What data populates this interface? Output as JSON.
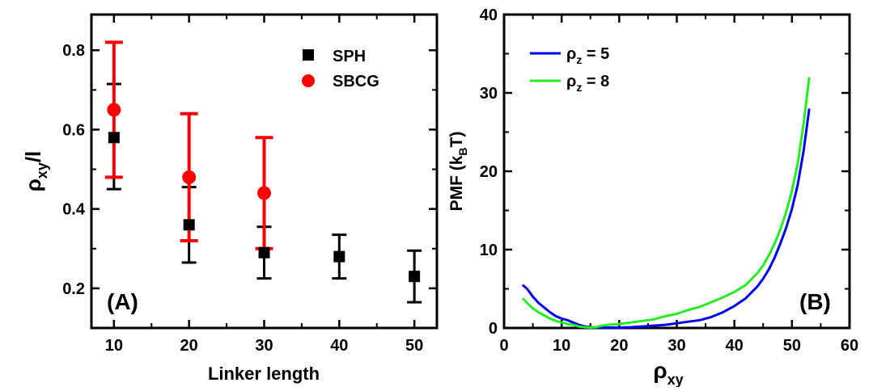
{
  "chart_data": [
    {
      "type": "scatter",
      "panel_label": "(A)",
      "xlabel": "Linker length",
      "ylabel": {
        "main": "ρ",
        "sub": "xy",
        "tail": "/l"
      },
      "xlim": [
        7,
        53
      ],
      "ylim": [
        0.1,
        0.89
      ],
      "xticks": [
        10,
        20,
        30,
        40,
        50
      ],
      "yticks": [
        0.2,
        0.4,
        0.6,
        0.8
      ],
      "xtick_labels": [
        "10",
        "20",
        "30",
        "40",
        "50"
      ],
      "ytick_labels": [
        "0.2",
        "0.4",
        "0.6",
        "0.8"
      ],
      "legend_position": "top-right",
      "series": [
        {
          "name": "SPH",
          "marker": "square",
          "color": "#000000",
          "points": [
            {
              "x": 10,
              "y": 0.58,
              "err_low": 0.45,
              "err_high": 0.715
            },
            {
              "x": 20,
              "y": 0.36,
              "err_low": 0.265,
              "err_high": 0.455
            },
            {
              "x": 30,
              "y": 0.29,
              "err_low": 0.225,
              "err_high": 0.355
            },
            {
              "x": 40,
              "y": 0.28,
              "err_low": 0.225,
              "err_high": 0.335
            },
            {
              "x": 50,
              "y": 0.23,
              "err_low": 0.165,
              "err_high": 0.295
            }
          ]
        },
        {
          "name": "SBCG",
          "marker": "circle",
          "color": "#ff0000",
          "points": [
            {
              "x": 10,
              "y": 0.65,
              "err_low": 0.48,
              "err_high": 0.82
            },
            {
              "x": 20,
              "y": 0.48,
              "err_low": 0.32,
              "err_high": 0.64
            },
            {
              "x": 30,
              "y": 0.44,
              "err_low": 0.3,
              "err_high": 0.58
            }
          ]
        }
      ]
    },
    {
      "type": "line",
      "panel_label": "(B)",
      "xlabel": {
        "main": "ρ",
        "sub": "xy"
      },
      "ylabel": {
        "main": "PMF (k",
        "sub": "B",
        "tail": "T)"
      },
      "xlim": [
        0,
        60
      ],
      "ylim": [
        0,
        40
      ],
      "xticks": [
        0,
        10,
        20,
        30,
        40,
        50,
        60
      ],
      "yticks": [
        0,
        10,
        20,
        30,
        40
      ],
      "xtick_labels": [
        "0",
        "10",
        "20",
        "30",
        "40",
        "50",
        "60"
      ],
      "ytick_labels": [
        "0",
        "10",
        "20",
        "30",
        "40"
      ],
      "legend_position": "top-left",
      "series": [
        {
          "name": {
            "main": "ρ",
            "sub": "z",
            "tail": " = 5"
          },
          "color": "#0000ee",
          "x": [
            3.2,
            4,
            5,
            6,
            7,
            8,
            9,
            10,
            11,
            12,
            13,
            14,
            15,
            16,
            18,
            20,
            22,
            24,
            26,
            28,
            30,
            32,
            34,
            36,
            38,
            40,
            42,
            44,
            45,
            46,
            47,
            48,
            49,
            50,
            51,
            52,
            53
          ],
          "y": [
            5.5,
            5.0,
            4.0,
            3.2,
            2.6,
            2.0,
            1.5,
            1.2,
            1.0,
            0.7,
            0.4,
            0.2,
            0.1,
            0.05,
            0.05,
            0.05,
            0.1,
            0.2,
            0.3,
            0.4,
            0.6,
            0.8,
            1.0,
            1.4,
            2.0,
            2.8,
            3.8,
            5.3,
            6.3,
            7.5,
            9.0,
            10.8,
            12.8,
            15.2,
            18.3,
            22.5,
            28.0
          ]
        },
        {
          "name": {
            "main": "ρ",
            "sub": "z",
            "tail": " = 8"
          },
          "color": "#22ee22",
          "x": [
            3.2,
            4,
            5,
            6,
            7,
            8,
            9,
            10,
            11,
            12,
            13,
            14,
            15,
            16,
            17,
            18,
            20,
            22,
            24,
            26,
            28,
            30,
            32,
            34,
            36,
            38,
            40,
            42,
            44,
            45,
            46,
            47,
            48,
            49,
            50,
            51,
            52,
            53
          ],
          "y": [
            3.8,
            3.2,
            2.5,
            2.0,
            1.6,
            1.2,
            0.9,
            0.7,
            0.5,
            0.4,
            0.2,
            0.1,
            0.05,
            0.1,
            0.3,
            0.4,
            0.5,
            0.7,
            0.9,
            1.1,
            1.5,
            1.8,
            2.3,
            2.7,
            3.3,
            3.9,
            4.6,
            5.5,
            7.0,
            8.0,
            9.3,
            10.8,
            12.6,
            14.8,
            17.5,
            21.0,
            26.0,
            32.0
          ]
        }
      ]
    }
  ]
}
